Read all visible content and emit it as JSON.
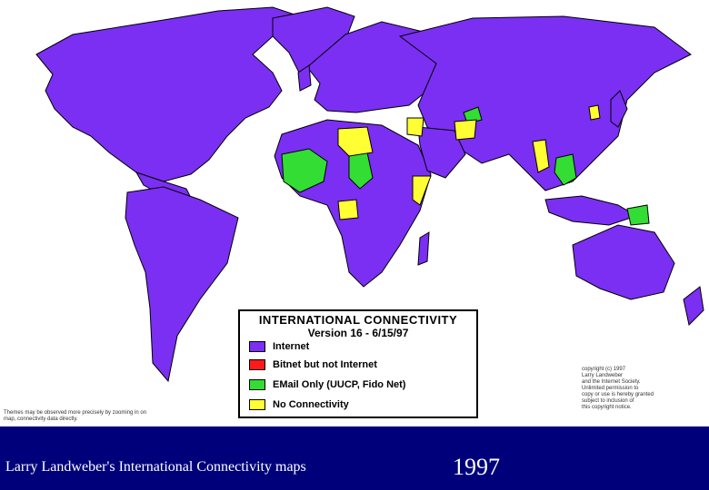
{
  "legend": {
    "title": "INTERNATIONAL CONNECTIVITY",
    "version": "Version 16 - 6/15/97",
    "items": [
      {
        "label": "Internet",
        "color": "#7b2ff2"
      },
      {
        "label": "Bitnet but not Internet",
        "color": "#ff1a1a"
      },
      {
        "label": "EMail Only (UUCP, Fido Net)",
        "color": "#33dd33"
      },
      {
        "label": "No Connectivity",
        "color": "#ffff33"
      }
    ]
  },
  "notes": {
    "left": "Themes may be observed more precisely by zooming in on map, connectivity data directly.",
    "right": "copyright (c) 1997\nLarry Landweber\nand the Internet Society.\nUnlimited permission to\ncopy or use is hereby granted\nsubject to inclusion of\nthis copyright notice."
  },
  "footer": {
    "caption": "Larry Landweber's International Connectivity maps",
    "year": "1997"
  },
  "colors": {
    "internet": "#7b2ff2",
    "email_only": "#33dd33",
    "no_connectivity": "#ffff33",
    "borders": "#000000",
    "footer_bg": "#00007a"
  }
}
